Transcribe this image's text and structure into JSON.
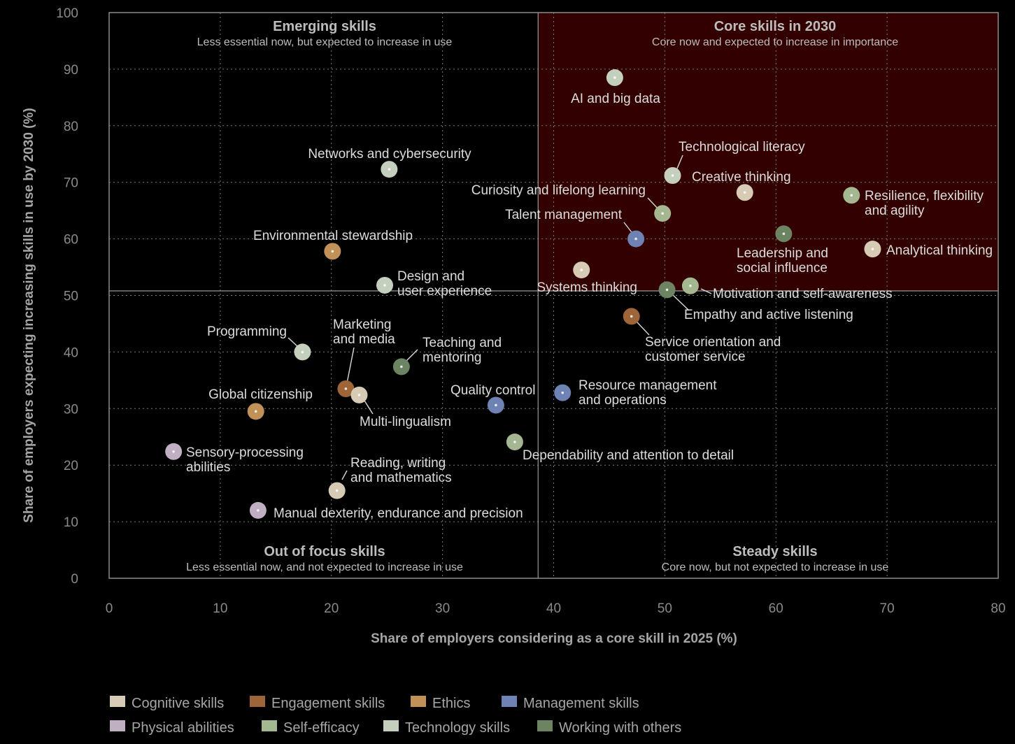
{
  "chart_data": {
    "type": "scatter",
    "xlabel": "Share of employers considering as a core skill in 2025 (%)",
    "ylabel": "Share of employers expecting increasing skills in use by 2030 (%)",
    "xlim": [
      0,
      80
    ],
    "ylim": [
      0,
      100
    ],
    "x_ticks": [
      "0",
      "10",
      "20",
      "30",
      "40",
      "50",
      "60",
      "70",
      "80"
    ],
    "y_ticks": [
      "0",
      "10",
      "20",
      "30",
      "40",
      "50",
      "60",
      "70",
      "80",
      "90",
      "100"
    ],
    "grid": "dotted",
    "divider": {
      "x": 38.6,
      "y": 50.8
    },
    "highlight_quadrant_color": "#330000",
    "quadrants": {
      "top_left": {
        "title": "Emerging skills",
        "subtitle": "Less essential now, but expected to increase in use"
      },
      "top_right": {
        "title": "Core skills in 2030",
        "subtitle": "Core now and expected to increase in importance"
      },
      "bottom_left": {
        "title": "Out of focus skills",
        "subtitle": "Less essential now, and not expected to increase in use"
      },
      "bottom_right": {
        "title": "Steady skills",
        "subtitle": "Core now, but not expected to increase in use"
      }
    },
    "categories": [
      {
        "key": "cognitive",
        "name": "Cognitive skills",
        "color": "#d7cbb6"
      },
      {
        "key": "engagement",
        "name": "Engagement skills",
        "color": "#9e6538"
      },
      {
        "key": "ethics",
        "name": "Ethics",
        "color": "#c29157"
      },
      {
        "key": "management",
        "name": "Management skills",
        "color": "#6f82b4"
      },
      {
        "key": "physical",
        "name": "Physical abilities",
        "color": "#c0afc3"
      },
      {
        "key": "selfefficacy",
        "name": "Self-efficacy",
        "color": "#a4b791"
      },
      {
        "key": "technology",
        "name": "Technology skills",
        "color": "#c5cfbd"
      },
      {
        "key": "working",
        "name": "Working with others",
        "color": "#6d8463"
      }
    ],
    "points": [
      {
        "label": [
          "AI and big data"
        ],
        "category": "technology",
        "x": 45.5,
        "y": 88.5
      },
      {
        "label": [
          "Technological literacy"
        ],
        "category": "technology",
        "x": 50.7,
        "y": 71.2
      },
      {
        "label": [
          "Creative thinking"
        ],
        "category": "cognitive",
        "x": 57.2,
        "y": 68.2
      },
      {
        "label": [
          "Resilience, flexibility",
          "and agility"
        ],
        "category": "selfefficacy",
        "x": 66.8,
        "y": 67.7
      },
      {
        "label": [
          "Curiosity and lifelong learning"
        ],
        "category": "selfefficacy",
        "x": 49.8,
        "y": 64.5
      },
      {
        "label": [
          "Talent management"
        ],
        "category": "management",
        "x": 47.4,
        "y": 60.0
      },
      {
        "label": [
          "Leadership and",
          "social influence"
        ],
        "category": "working",
        "x": 60.7,
        "y": 60.9
      },
      {
        "label": [
          "Analytical thinking"
        ],
        "category": "cognitive",
        "x": 68.7,
        "y": 58.2
      },
      {
        "label": [
          "Systems thinking"
        ],
        "category": "cognitive",
        "x": 42.5,
        "y": 54.5
      },
      {
        "label": [
          "Motivation and self-awareness"
        ],
        "category": "selfefficacy",
        "x": 52.3,
        "y": 51.7
      },
      {
        "label": [
          "Empathy and active listening"
        ],
        "category": "working",
        "x": 50.2,
        "y": 51.0
      },
      {
        "label": [
          "Service orientation and",
          "customer service"
        ],
        "category": "engagement",
        "x": 47.0,
        "y": 46.3
      },
      {
        "label": [
          "Networks and cybersecurity"
        ],
        "category": "technology",
        "x": 25.2,
        "y": 72.3
      },
      {
        "label": [
          "Environmental stewardship"
        ],
        "category": "ethics",
        "x": 20.1,
        "y": 57.8
      },
      {
        "label": [
          "Design and",
          "user experience"
        ],
        "category": "technology",
        "x": 24.8,
        "y": 51.8
      },
      {
        "label": [
          "Programming"
        ],
        "category": "technology",
        "x": 17.4,
        "y": 40.0
      },
      {
        "label": [
          "Marketing",
          "and media"
        ],
        "category": "engagement",
        "x": 21.3,
        "y": 33.5
      },
      {
        "label": [
          "Teaching and",
          "mentoring"
        ],
        "category": "working",
        "x": 26.3,
        "y": 37.4
      },
      {
        "label": [
          "Multi-lingualism"
        ],
        "category": "cognitive",
        "x": 22.5,
        "y": 32.4
      },
      {
        "label": [
          "Global citizenship"
        ],
        "category": "ethics",
        "x": 13.2,
        "y": 29.5
      },
      {
        "label": [
          "Quality control"
        ],
        "category": "management",
        "x": 34.8,
        "y": 30.6
      },
      {
        "label": [
          "Resource management",
          "and operations"
        ],
        "category": "management",
        "x": 40.8,
        "y": 32.8
      },
      {
        "label": [
          "Sensory-processing",
          "abilities"
        ],
        "category": "physical",
        "x": 5.8,
        "y": 22.4
      },
      {
        "label": [
          "Dependability and attention to detail"
        ],
        "category": "selfefficacy",
        "x": 36.5,
        "y": 24.1
      },
      {
        "label": [
          "Reading, writing",
          "and mathematics"
        ],
        "category": "cognitive",
        "x": 20.5,
        "y": 15.5
      },
      {
        "label": [
          "Manual dexterity, endurance and precision"
        ],
        "category": "physical",
        "x": 13.4,
        "y": 12.0
      }
    ]
  }
}
